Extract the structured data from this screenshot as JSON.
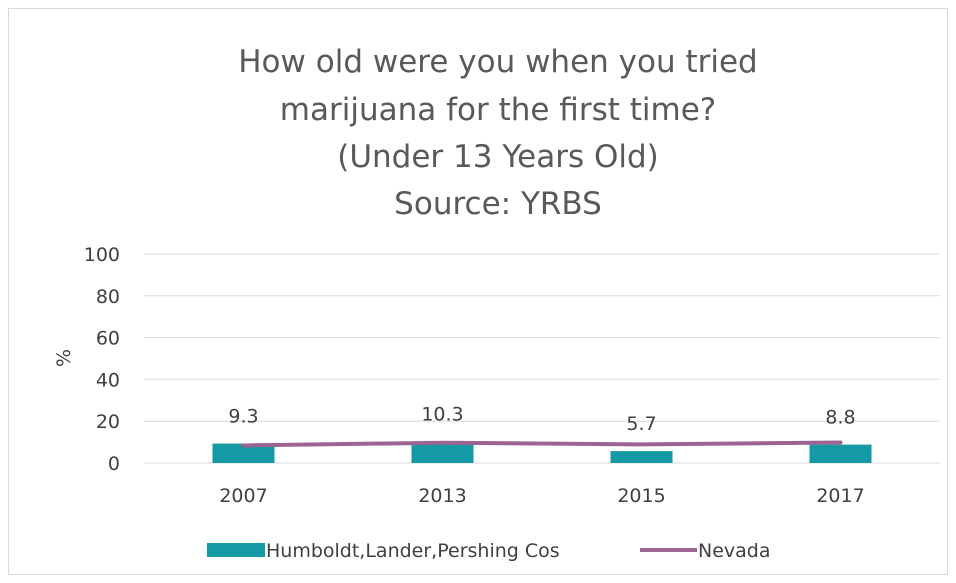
{
  "chart_data": {
    "type": "bar",
    "title_lines": [
      "How old were you when you tried",
      "marijuana for the first time?",
      "(Under 13 Years Old)",
      "Source:  YRBS"
    ],
    "categories": [
      "2007",
      "2013",
      "2015",
      "2017"
    ],
    "series": [
      {
        "name": "Humboldt,Lander,Pershing Cos",
        "type": "bar",
        "values": [
          9.3,
          10.3,
          5.7,
          8.8
        ],
        "data_labels": [
          "9.3",
          "10.3",
          "5.7",
          "8.8"
        ]
      },
      {
        "name": "Nevada",
        "type": "line",
        "values": [
          8.4,
          9.7,
          8.9,
          9.8
        ]
      }
    ],
    "xlabel": "",
    "ylabel": "%",
    "ylim": [
      0,
      100
    ],
    "yticks": [
      "0",
      "20",
      "40",
      "60",
      "80",
      "100"
    ],
    "grid": true,
    "legend_position": "bottom",
    "colors": {
      "bar": "#149aa5",
      "line": "#9c6492",
      "grid": "#d9d9d9"
    }
  }
}
